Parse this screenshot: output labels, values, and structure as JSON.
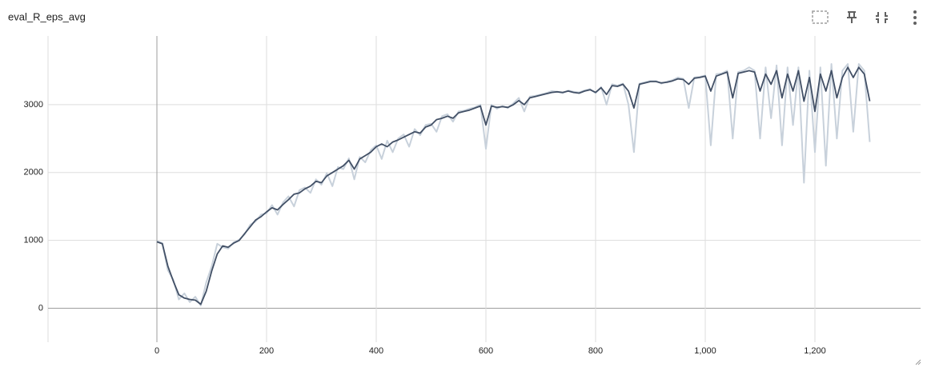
{
  "chart_data": {
    "type": "line",
    "title": "eval_R_eps_avg",
    "x": [
      0,
      10,
      20,
      30,
      40,
      50,
      60,
      70,
      80,
      90,
      100,
      110,
      120,
      130,
      140,
      150,
      160,
      170,
      180,
      190,
      200,
      210,
      220,
      230,
      240,
      250,
      260,
      270,
      280,
      290,
      300,
      310,
      320,
      330,
      340,
      350,
      360,
      370,
      380,
      390,
      400,
      410,
      420,
      430,
      440,
      450,
      460,
      470,
      480,
      490,
      500,
      510,
      520,
      530,
      540,
      550,
      560,
      570,
      580,
      590,
      600,
      610,
      620,
      630,
      640,
      650,
      660,
      670,
      680,
      690,
      700,
      710,
      720,
      730,
      740,
      750,
      760,
      770,
      780,
      790,
      800,
      810,
      820,
      830,
      840,
      850,
      860,
      870,
      880,
      890,
      900,
      910,
      920,
      930,
      940,
      950,
      960,
      970,
      980,
      990,
      1000,
      1010,
      1020,
      1030,
      1040,
      1050,
      1060,
      1070,
      1080,
      1090,
      1100,
      1110,
      1120,
      1130,
      1140,
      1150,
      1160,
      1170,
      1180,
      1190,
      1200,
      1210,
      1220,
      1230,
      1240,
      1250,
      1260,
      1270,
      1280,
      1290,
      1300
    ],
    "series": [
      {
        "color": "#c8d1db",
        "values": [
          990,
          960,
          560,
          420,
          130,
          220,
          90,
          170,
          40,
          380,
          620,
          950,
          900,
          880,
          970,
          1010,
          1090,
          1230,
          1280,
          1380,
          1400,
          1520,
          1380,
          1560,
          1650,
          1500,
          1740,
          1780,
          1700,
          1900,
          1820,
          1990,
          1800,
          2080,
          2050,
          2210,
          1900,
          2230,
          2150,
          2330,
          2400,
          2200,
          2470,
          2300,
          2500,
          2560,
          2380,
          2640,
          2550,
          2700,
          2720,
          2600,
          2830,
          2860,
          2750,
          2900,
          2910,
          2940,
          2960,
          3000,
          2350,
          3000,
          2940,
          2980,
          2950,
          3020,
          3100,
          2900,
          3120,
          3130,
          3150,
          3170,
          3200,
          3190,
          3170,
          3210,
          3190,
          3180,
          3210,
          3230,
          3170,
          3260,
          3000,
          3300,
          3280,
          3310,
          3000,
          2300,
          3310,
          3330,
          3350,
          3350,
          3310,
          3340,
          3360,
          3400,
          3380,
          2950,
          3400,
          3410,
          3430,
          2400,
          3450,
          3460,
          3500,
          2500,
          3480,
          3500,
          3550,
          3500,
          2500,
          3550,
          2800,
          3580,
          2400,
          3550,
          2700,
          3550,
          1850,
          3500,
          2300,
          3550,
          2100,
          3600,
          2500,
          3500,
          3600,
          2600,
          3600,
          3500,
          2450
        ]
      },
      {
        "color": "#425066",
        "values": [
          980,
          950,
          620,
          400,
          200,
          150,
          130,
          120,
          60,
          250,
          550,
          800,
          920,
          900,
          960,
          1000,
          1100,
          1200,
          1300,
          1350,
          1420,
          1480,
          1450,
          1530,
          1600,
          1680,
          1700,
          1760,
          1800,
          1870,
          1850,
          1950,
          2000,
          2050,
          2100,
          2180,
          2050,
          2200,
          2250,
          2300,
          2380,
          2420,
          2380,
          2450,
          2480,
          2520,
          2560,
          2600,
          2580,
          2670,
          2700,
          2780,
          2800,
          2830,
          2800,
          2880,
          2900,
          2920,
          2950,
          2980,
          2700,
          2980,
          2960,
          2970,
          2960,
          3000,
          3060,
          3000,
          3100,
          3120,
          3140,
          3160,
          3180,
          3190,
          3180,
          3200,
          3180,
          3170,
          3200,
          3220,
          3180,
          3250,
          3150,
          3280,
          3270,
          3300,
          3200,
          2950,
          3300,
          3320,
          3340,
          3340,
          3320,
          3330,
          3350,
          3380,
          3370,
          3300,
          3390,
          3400,
          3420,
          3200,
          3420,
          3450,
          3480,
          3100,
          3460,
          3480,
          3500,
          3480,
          3200,
          3450,
          3300,
          3500,
          3100,
          3450,
          3200,
          3500,
          3050,
          3400,
          2900,
          3450,
          3200,
          3500,
          3100,
          3400,
          3550,
          3400,
          3550,
          3450,
          3050
        ]
      }
    ],
    "xlim": [
      -200,
      1400
    ],
    "ylim": [
      -500,
      4000
    ],
    "xticks": [
      0,
      200,
      400,
      600,
      800,
      {
        "value": 1000,
        "label": "1,000"
      },
      {
        "value": 1200,
        "label": "1,200"
      }
    ],
    "yticks": [
      0,
      1000,
      2000,
      3000
    ],
    "grid": true
  }
}
